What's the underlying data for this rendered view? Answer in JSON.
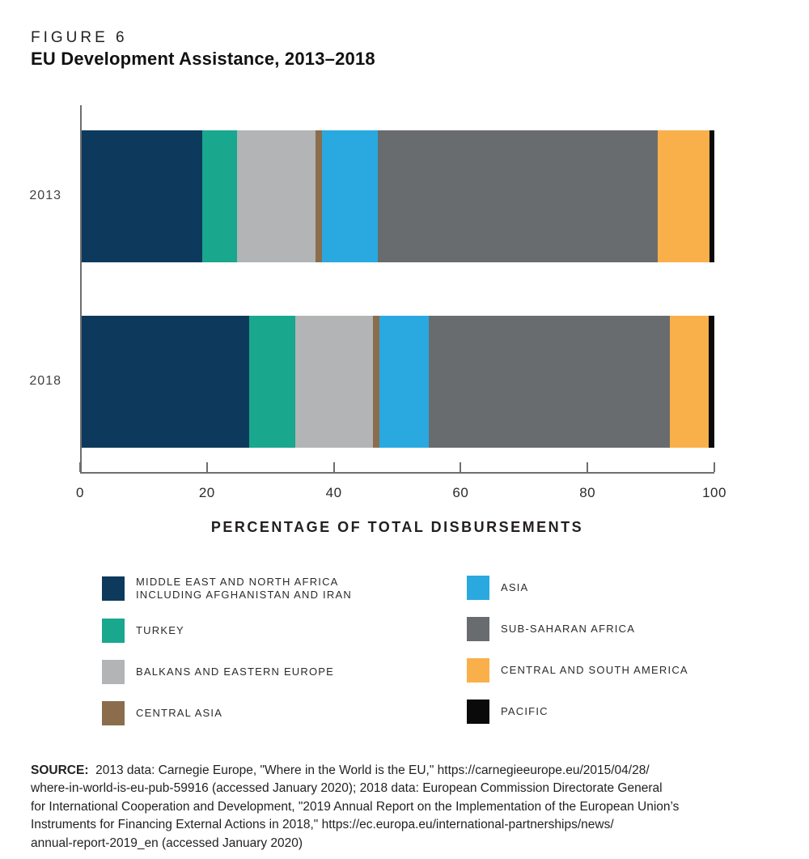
{
  "header": {
    "figure_label": "FIGURE 6",
    "title": "EU Development Assistance, 2013–2018"
  },
  "chart_data": {
    "type": "bar",
    "orientation": "horizontal",
    "stacked": true,
    "categories": [
      "2013",
      "2018"
    ],
    "series": [
      {
        "name": "MIDDLE EAST AND NORTH AFRICA INCLUDING AFGHANISTAN AND IRAN",
        "color": "#0d3a5c",
        "values": [
          19.0,
          26.5
        ]
      },
      {
        "name": "TURKEY",
        "color": "#19a78e",
        "values": [
          5.6,
          7.3
        ]
      },
      {
        "name": "BALKANS AND EASTERN EUROPE",
        "color": "#b2b4b6",
        "values": [
          12.3,
          12.3
        ]
      },
      {
        "name": "CENTRAL ASIA",
        "color": "#8b6d4e",
        "values": [
          1.1,
          1.0
        ]
      },
      {
        "name": "ASIA",
        "color": "#29a9e0",
        "values": [
          8.8,
          7.8
        ]
      },
      {
        "name": "SUB-SAHARAN AFRICA",
        "color": "#696c6f",
        "values": [
          44.2,
          38.1
        ]
      },
      {
        "name": "CENTRAL AND SOUTH AMERICA",
        "color": "#f9b04a",
        "values": [
          8.2,
          6.1
        ]
      },
      {
        "name": "PACIFIC",
        "color": "#0a0a0a",
        "values": [
          0.8,
          0.9
        ]
      }
    ],
    "xlabel": "PERCENTAGE OF TOTAL DISBURSEMENTS",
    "x_ticks": [
      0,
      20,
      40,
      60,
      80,
      100
    ],
    "xlim": [
      0,
      100
    ],
    "grid": false,
    "legend_position": "bottom"
  },
  "axis": {
    "label_2013": "2013",
    "label_2018": "2018",
    "title": "PERCENTAGE OF TOTAL DISBURSEMENTS"
  },
  "legend": {
    "items": [
      {
        "lines": [
          "MIDDLE EAST AND NORTH AFRICA",
          "INCLUDING AFGHANISTAN AND IRAN"
        ],
        "color": "#0d3a5c"
      },
      {
        "lines": [
          "TURKEY"
        ],
        "color": "#19a78e"
      },
      {
        "lines": [
          "BALKANS AND EASTERN EUROPE"
        ],
        "color": "#b2b4b6"
      },
      {
        "lines": [
          "CENTRAL ASIA"
        ],
        "color": "#8b6d4e"
      },
      {
        "lines": [
          "ASIA"
        ],
        "color": "#29a9e0"
      },
      {
        "lines": [
          "SUB-SAHARAN AFRICA"
        ],
        "color": "#696c6f"
      },
      {
        "lines": [
          "CENTRAL AND SOUTH AMERICA"
        ],
        "color": "#f9b04a"
      },
      {
        "lines": [
          "PACIFIC"
        ],
        "color": "#0a0a0a"
      }
    ]
  },
  "source": {
    "prefix": "SOURCE:",
    "lines": [
      "2013 data: Carnegie Europe, \"Where in the World is the EU,\" https://carnegieeurope.eu/2015/04/28/",
      "where-in-world-is-eu-pub-59916 (accessed January 2020); 2018 data: European Commission Directorate General",
      "for International Cooperation and Development, \"2019 Annual Report on the Implementation of the European Union’s",
      "Instruments for Financing External Actions in 2018,\" https://ec.europa.eu/international-partnerships/news/",
      "annual-report-2019_en (accessed January 2020)"
    ]
  }
}
